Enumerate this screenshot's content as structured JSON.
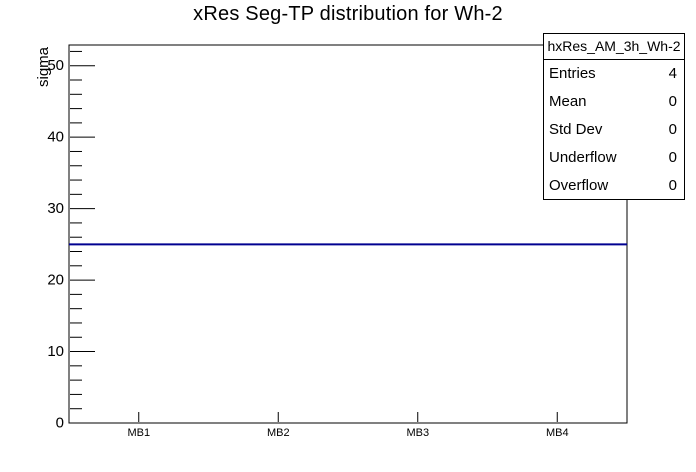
{
  "chart_data": {
    "type": "line",
    "title": "xRes Seg-TP distribution for Wh-2",
    "categories": [
      "MB1",
      "MB2",
      "MB3",
      "MB4"
    ],
    "series": [
      {
        "name": "hxRes_AM_3h_Wh-2",
        "values": [
          25,
          25,
          25,
          25
        ]
      }
    ],
    "xlabel": "",
    "ylabel": "sigma",
    "ylim": [
      0,
      52.9
    ],
    "y_major_ticks": [
      0,
      10,
      20,
      30,
      40,
      50
    ],
    "y_minor_step": 2,
    "grid": false,
    "legend_position": "none",
    "line_color": "#000090",
    "frame_color": "#000000",
    "background_color": "#ffffff"
  },
  "stats_box": {
    "header": "hxRes_AM_3h_Wh-2",
    "rows": [
      {
        "label": "Entries",
        "value": "4"
      },
      {
        "label": "Mean",
        "value": "0"
      },
      {
        "label": "Std Dev",
        "value": "0"
      },
      {
        "label": "Underflow",
        "value": "0"
      },
      {
        "label": "Overflow",
        "value": "0"
      }
    ]
  }
}
